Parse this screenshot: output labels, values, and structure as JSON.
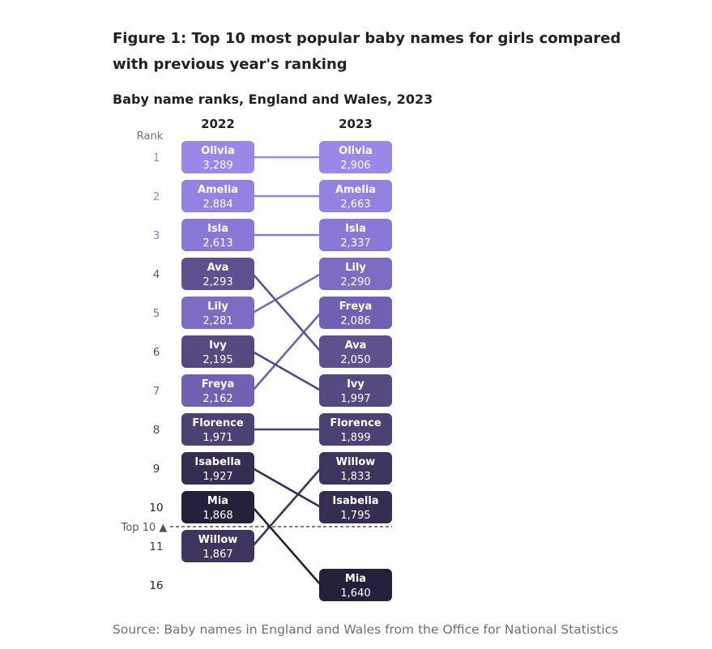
{
  "figure": {
    "title": "Figure 1: Top 10 most popular baby names for girls compared with previous year's ranking",
    "subtitle": "Baby name ranks, England and Wales, 2023",
    "source": "Source: Baby names in England and Wales from the Office for National Statistics"
  },
  "chart_data": {
    "type": "slope",
    "rank_axis_label": "Rank",
    "cutoff_label": "Top 10 ▲",
    "cutoff_after_rank": 10,
    "columns": [
      "2022",
      "2023"
    ],
    "rank_rows": [
      1,
      2,
      3,
      4,
      5,
      6,
      7,
      8,
      9,
      10,
      11,
      16
    ],
    "names": [
      {
        "name": "Olivia",
        "rank_2022": 1,
        "count_2022": "3,289",
        "rank_2023": 1,
        "count_2023": "2,906",
        "color": "#9b87e8"
      },
      {
        "name": "Amelia",
        "rank_2022": 2,
        "count_2022": "2,884",
        "rank_2023": 2,
        "count_2023": "2,663",
        "color": "#9382df"
      },
      {
        "name": "Isla",
        "rank_2022": 3,
        "count_2022": "2,613",
        "rank_2023": 3,
        "count_2023": "2,337",
        "color": "#8a78d6"
      },
      {
        "name": "Lily",
        "rank_2022": 5,
        "count_2022": "2,281",
        "rank_2023": 4,
        "count_2023": "2,290",
        "color": "#7d6bc4"
      },
      {
        "name": "Freya",
        "rank_2022": 7,
        "count_2022": "2,162",
        "rank_2023": 5,
        "count_2023": "2,086",
        "color": "#7261b2"
      },
      {
        "name": "Ava",
        "rank_2022": 4,
        "count_2022": "2,293",
        "rank_2023": 6,
        "count_2023": "2,050",
        "color": "#5f518f"
      },
      {
        "name": "Ivy",
        "rank_2022": 6,
        "count_2022": "2,195",
        "rank_2023": 7,
        "count_2023": "1,997",
        "color": "#55497f"
      },
      {
        "name": "Florence",
        "rank_2022": 8,
        "count_2022": "1,971",
        "rank_2023": 8,
        "count_2023": "1,899",
        "color": "#4c4173"
      },
      {
        "name": "Willow",
        "rank_2022": 11,
        "count_2022": "1,867",
        "rank_2023": 9,
        "count_2023": "1,833",
        "color": "#3e355e"
      },
      {
        "name": "Isabella",
        "rank_2022": 9,
        "count_2022": "1,927",
        "rank_2023": 10,
        "count_2023": "1,795",
        "color": "#352d52"
      },
      {
        "name": "Mia",
        "rank_2022": 10,
        "count_2022": "1,868",
        "rank_2023": 16,
        "count_2023": "1,640",
        "color": "#24203a"
      }
    ]
  }
}
